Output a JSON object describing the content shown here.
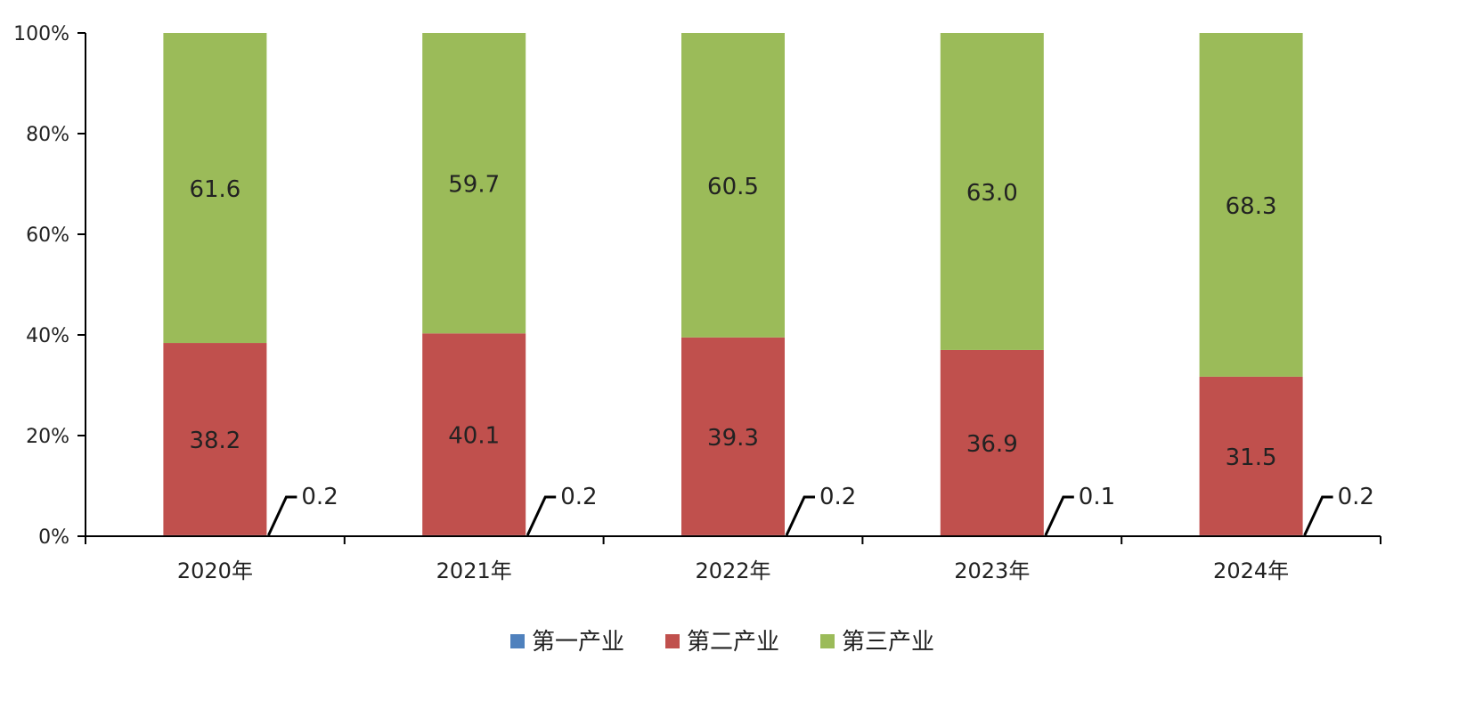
{
  "chart_data": {
    "type": "bar",
    "stacked": true,
    "percent_stacked": true,
    "categories": [
      "2020年",
      "2021年",
      "2022年",
      "2023年",
      "2024年"
    ],
    "series": [
      {
        "name": "第一产业",
        "color": "#4f81bd",
        "values": [
          0.2,
          0.2,
          0.2,
          0.1,
          0.2
        ],
        "labels": [
          "0.2",
          "0.2",
          "0.2",
          "0.1",
          "0.2"
        ]
      },
      {
        "name": "第二产业",
        "color": "#c0504d",
        "values": [
          38.2,
          40.1,
          39.3,
          36.9,
          31.5
        ],
        "labels": [
          "38.2",
          "40.1",
          "39.3",
          "36.9",
          "31.5"
        ]
      },
      {
        "name": "第三产业",
        "color": "#9bbb59",
        "values": [
          61.6,
          59.7,
          60.5,
          63.0,
          68.3
        ],
        "labels": [
          "61.6",
          "59.7",
          "60.5",
          "63.0",
          "68.3"
        ]
      }
    ],
    "ylim": [
      0,
      100
    ],
    "yticks": [
      "0%",
      "20%",
      "40%",
      "60%",
      "80%",
      "100%"
    ],
    "grid": false,
    "legend_position": "bottom"
  }
}
